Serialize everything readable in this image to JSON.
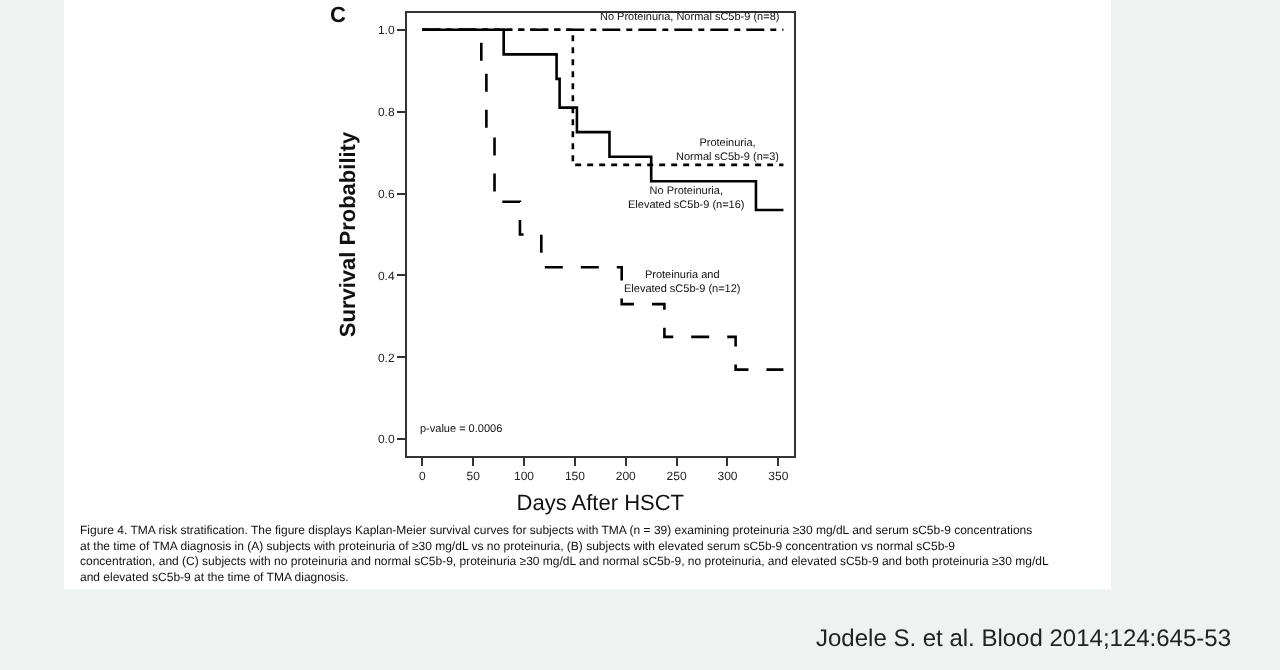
{
  "chart_data": {
    "type": "step",
    "xlabel": "Days After HSCT",
    "ylabel": "Survival Probability",
    "xlim": [
      -15,
      365
    ],
    "xticks": [
      0,
      50,
      100,
      150,
      200,
      250,
      300,
      350
    ],
    "ylim": [
      -0.04,
      1.04
    ],
    "yticks": [
      {
        "value": 0,
        "label": "0.0"
      },
      {
        "value": 0.2,
        "label": "0.2"
      },
      {
        "value": 0.4,
        "label": "0.4"
      },
      {
        "value": 0.6,
        "label": "0.6"
      },
      {
        "value": 0.8,
        "label": "0.8"
      },
      {
        "value": 1,
        "label": "1.0"
      }
    ],
    "marker": "none",
    "series": [
      {
        "color": "#000000",
        "line_style": "dashdot",
        "x": [
          0,
          355
        ],
        "values": [
          1,
          1
        ]
      },
      {
        "color": "#000000",
        "line_style": "dotted",
        "x": [
          0,
          148,
          355
        ],
        "values": [
          1,
          0.67,
          0.67
        ]
      },
      {
        "color": "#000000",
        "line_style": "solid",
        "x": [
          0,
          80,
          132,
          135,
          152,
          184,
          225,
          328,
          355
        ],
        "values": [
          1,
          0.94,
          0.88,
          0.81,
          0.75,
          0.69,
          0.63,
          0.56,
          0.56
        ]
      },
      {
        "color": "#000000",
        "line_style": "dashed",
        "x": [
          0,
          58,
          63,
          71,
          96,
          117,
          196,
          238,
          308,
          355
        ],
        "values": [
          1,
          0.92,
          0.75,
          0.58,
          0.5,
          0.42,
          0.33,
          0.25,
          0.17,
          0.17
        ]
      }
    ],
    "annotations": [
      "C",
      "No Proteinuria, Normal sC5b-9 (n=8)",
      "Proteinuria,\nNormal sC5b-9 (n=3)",
      "No Proteinuria,\nElevated sC5b-9 (n=16)",
      "Proteinuria and\nElevated sC5b-9 (n=12)",
      "p-value = 0.0006",
      "Figure 4. TMA risk stratification. The figure displays Kaplan-Meier survival curves for subjects with TMA (n = 39) examining proteinuria ≥30 mg/dL and serum sC5b-9 concentrations at the time of TMA diagnosis in (A) subjects with proteinuria of ≥30 mg/dL vs no proteinuria, (B) subjects with elevated serum sC5b-9 concentration vs normal sC5b-9 concentration, and (C) subjects with no proteinuria and normal sC5b-9, proteinuria ≥30 mg/dL and normal sC5b-9, no proteinuria, and elevated sC5b-9 and both proteinuria ≥30 mg/dL and elevated sC5b-9 at the time of TMA diagnosis.",
      "Jodele S. et al. Blood 2014;124:645-53"
    ]
  }
}
